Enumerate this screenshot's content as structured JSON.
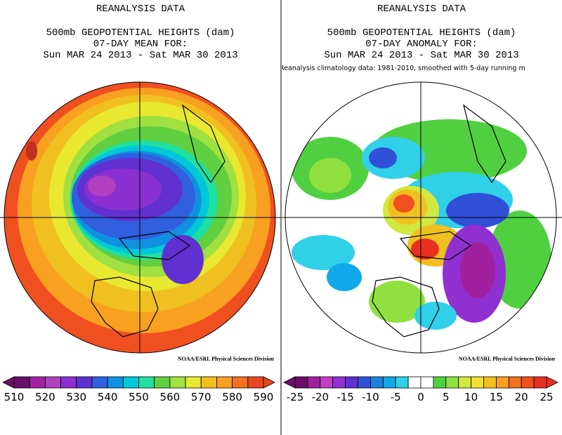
{
  "panels": [
    {
      "title_lines": [
        "REANALYSIS DATA",
        "500mb GEOPOTENTIAL HEIGHTS (dam)",
        "07-DAY MEAN FOR:",
        "Sun MAR 24 2013 - Sat MAR 30 2013"
      ],
      "credit": "NOAA/ESRL Physical Sciences Division",
      "colorbar": {
        "labels": [
          510,
          520,
          530,
          540,
          550,
          560,
          570,
          580,
          590
        ],
        "colors": [
          "#6a0f6a",
          "#a020a0",
          "#b040c0",
          "#8a30d0",
          "#6030d0",
          "#3060e0",
          "#1090e0",
          "#00c8d8",
          "#20e0a0",
          "#60d040",
          "#a0e040",
          "#e8e830",
          "#f0c020",
          "#f8a020",
          "#f07020",
          "#e84820"
        ]
      }
    },
    {
      "title_lines": [
        "REANALYSIS DATA",
        "500mb GEOPOTENTIAL HEIGHTS (dam)",
        "07-DAY ANOMALY FOR:",
        "Sun MAR 24 2013 - Sat MAR 30 2013"
      ],
      "note": "Reanalysis climatology data: 1981-2010, smoothed with 5-day running m",
      "credit": "NOAA/ESRL Physical Sciences Division",
      "colorbar": {
        "labels": [
          -25,
          -20,
          -15,
          -10,
          -5,
          0,
          5,
          10,
          15,
          20,
          25
        ],
        "colors": [
          "#6a0f6a",
          "#a020a0",
          "#c040c0",
          "#9030d0",
          "#6030d0",
          "#3050d8",
          "#2080e0",
          "#10a8e8",
          "#30d0e8",
          "#ffffff",
          "#ffffff",
          "#50d040",
          "#90e040",
          "#d0e840",
          "#f0e030",
          "#f0c020",
          "#f8a020",
          "#f07020",
          "#f05020",
          "#e83020"
        ]
      }
    }
  ]
}
